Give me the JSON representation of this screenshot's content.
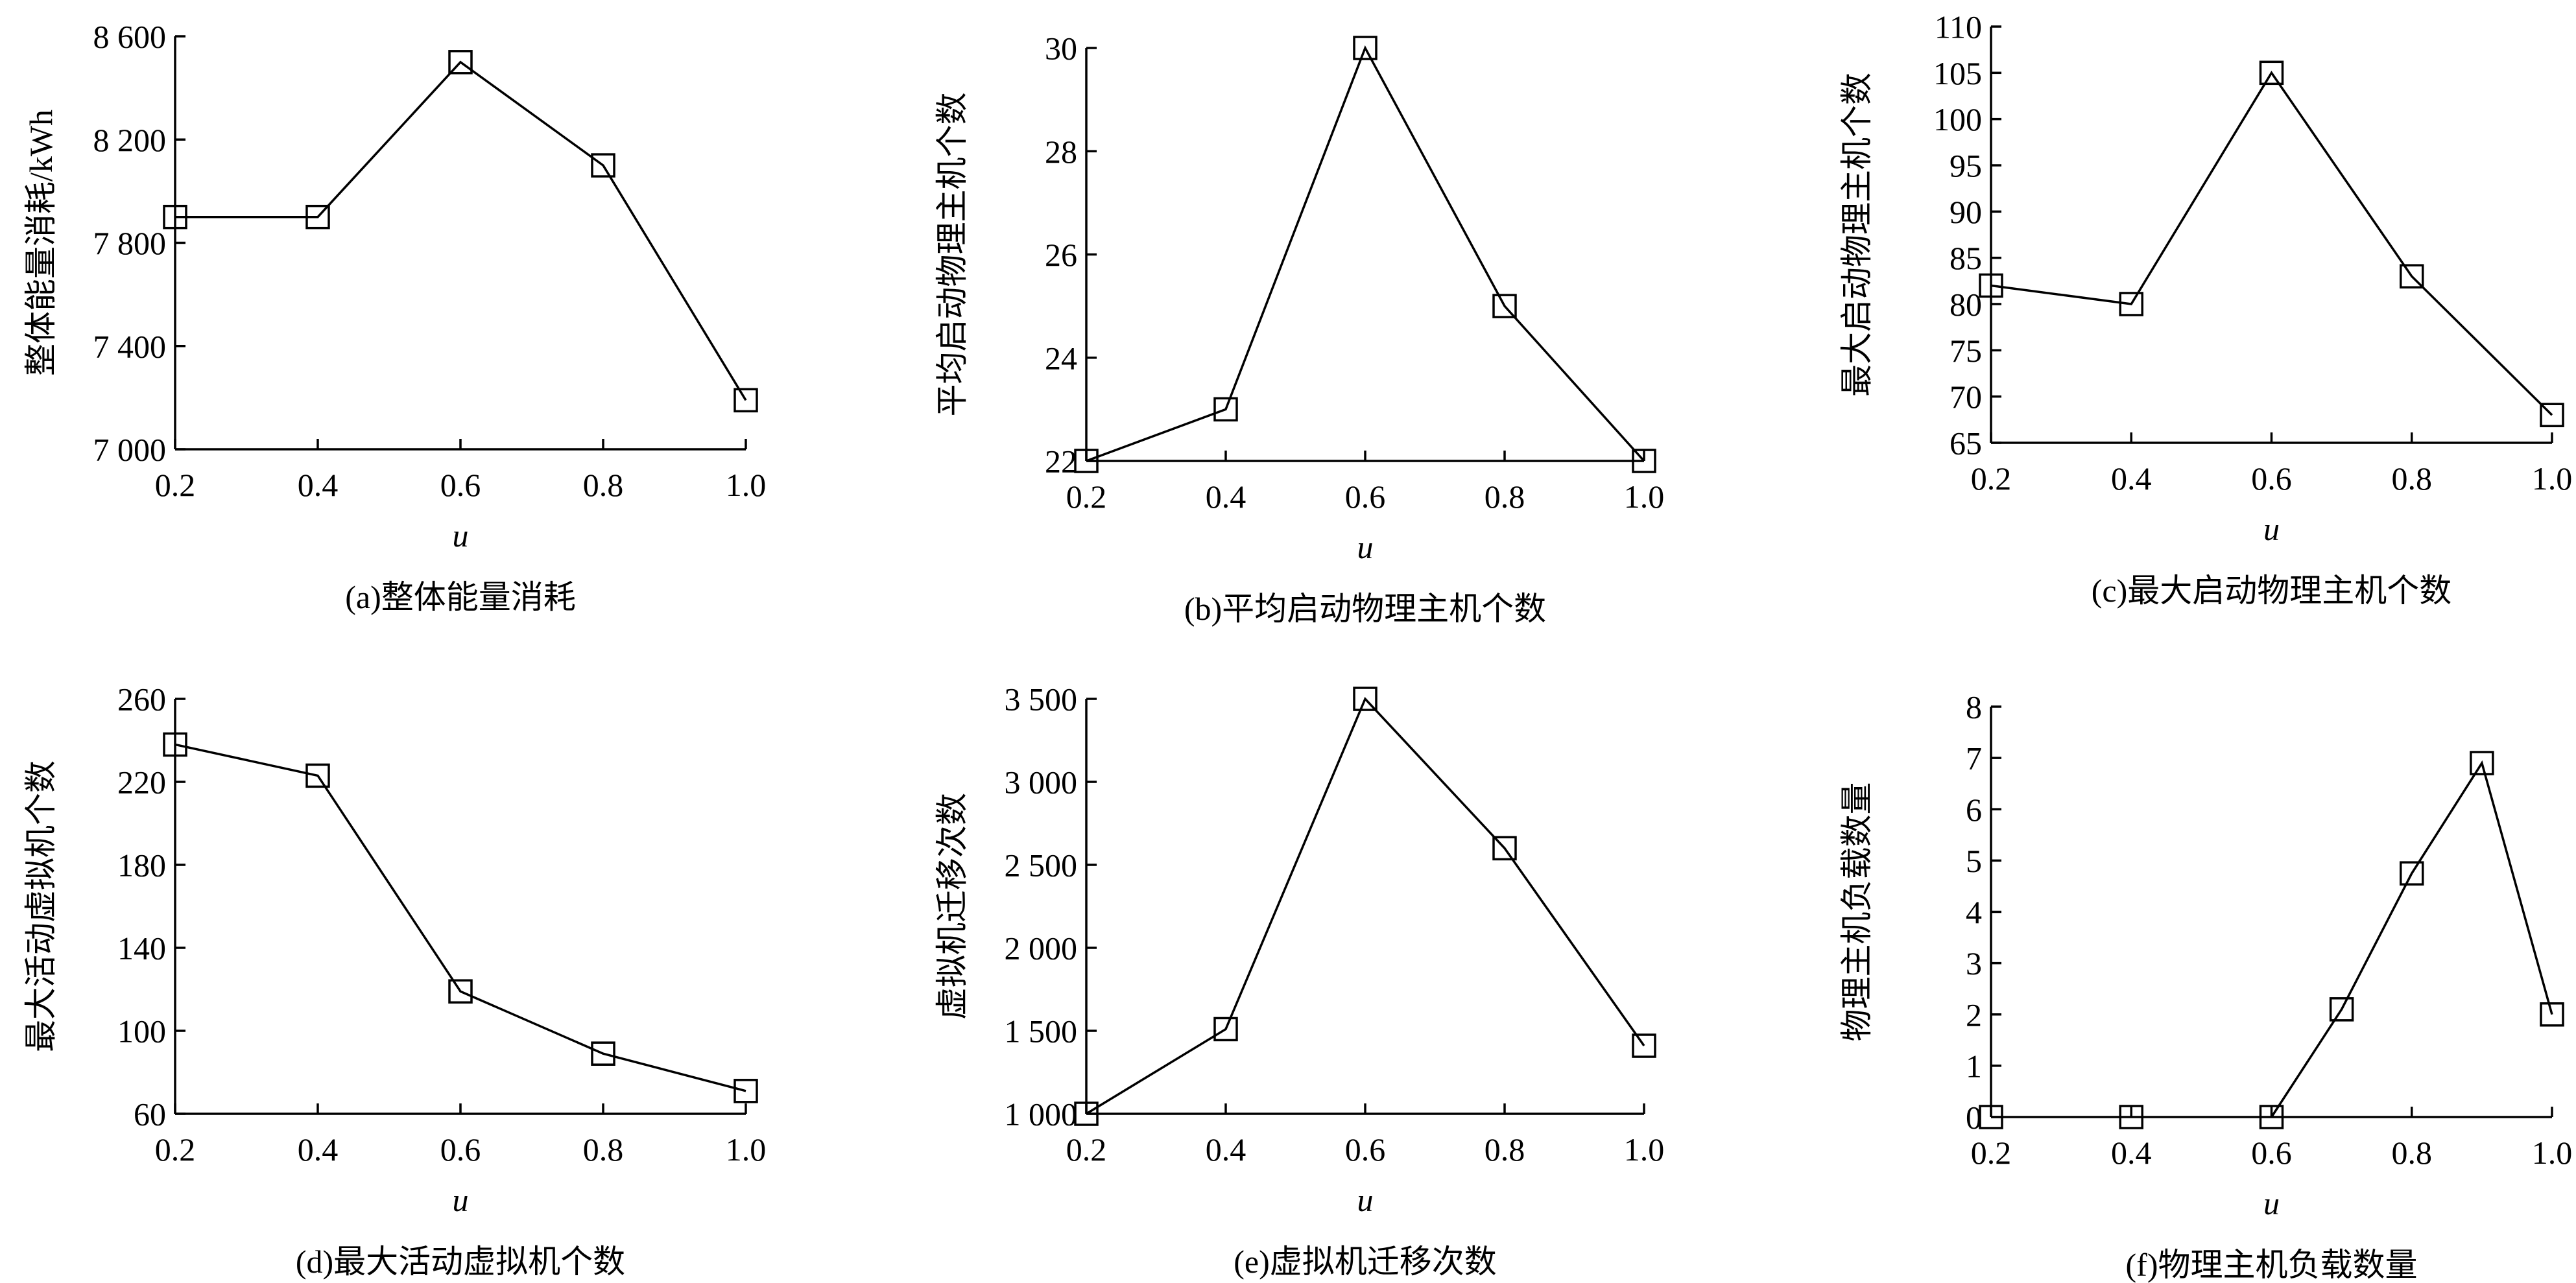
{
  "chart_data": [
    {
      "type": "line",
      "caption": "(a)整体能量消耗",
      "xlabel": "u",
      "ylabel": "整体能量消耗/kWh",
      "x": [
        0.2,
        0.4,
        0.6,
        0.8,
        1.0
      ],
      "series": [
        {
          "values": [
            7900,
            7900,
            8500,
            8100,
            7190
          ]
        }
      ],
      "xlim": [
        0.2,
        1.0
      ],
      "ylim": [
        7000,
        8600
      ],
      "xticks": [
        0.2,
        0.4,
        0.6,
        0.8,
        1.0
      ],
      "xtick_labels": [
        "0.2",
        "0.4",
        "0.6",
        "0.8",
        "1.0"
      ],
      "yticks": [
        7000,
        7400,
        7800,
        8200,
        8600
      ],
      "ytick_labels": [
        "7 000",
        "7 400",
        "7 800",
        "8 200",
        "8 600"
      ],
      "marker": "square",
      "grid": false
    },
    {
      "type": "line",
      "caption": "(b)平均启动物理主机个数",
      "xlabel": "u",
      "ylabel": "平均启动物理主机个数",
      "x": [
        0.2,
        0.4,
        0.6,
        0.8,
        1.0
      ],
      "series": [
        {
          "values": [
            22,
            23,
            30,
            25,
            22
          ]
        }
      ],
      "xlim": [
        0.2,
        1.0
      ],
      "ylim": [
        22,
        30
      ],
      "xticks": [
        0.2,
        0.4,
        0.6,
        0.8,
        1.0
      ],
      "xtick_labels": [
        "0.2",
        "0.4",
        "0.6",
        "0.8",
        "1.0"
      ],
      "yticks": [
        22,
        24,
        26,
        28,
        30
      ],
      "ytick_labels": [
        "22",
        "24",
        "26",
        "28",
        "30"
      ],
      "marker": "square",
      "grid": false
    },
    {
      "type": "line",
      "caption": "(c)最大启动物理主机个数",
      "xlabel": "u",
      "ylabel": "最大启动物理主机个数",
      "x": [
        0.2,
        0.4,
        0.6,
        0.8,
        1.0
      ],
      "series": [
        {
          "values": [
            82,
            80,
            105,
            83,
            68
          ]
        }
      ],
      "xlim": [
        0.2,
        1.0
      ],
      "ylim": [
        65,
        110
      ],
      "xticks": [
        0.2,
        0.4,
        0.6,
        0.8,
        1.0
      ],
      "xtick_labels": [
        "0.2",
        "0.4",
        "0.6",
        "0.8",
        "1.0"
      ],
      "yticks": [
        65,
        70,
        75,
        80,
        85,
        90,
        95,
        100,
        105,
        110
      ],
      "ytick_labels": [
        "65",
        "70",
        "75",
        "80",
        "85",
        "90",
        "95",
        "100",
        "105",
        "110"
      ],
      "marker": "square",
      "grid": false
    },
    {
      "type": "line",
      "caption": "(d)最大活动虚拟机个数",
      "xlabel": "u",
      "ylabel": "最大活动虚拟机个数",
      "x": [
        0.2,
        0.4,
        0.6,
        0.8,
        1.0
      ],
      "series": [
        {
          "values": [
            238,
            223,
            119,
            89,
            71
          ]
        }
      ],
      "xlim": [
        0.2,
        1.0
      ],
      "ylim": [
        60,
        260
      ],
      "xticks": [
        0.2,
        0.4,
        0.6,
        0.8,
        1.0
      ],
      "xtick_labels": [
        "0.2",
        "0.4",
        "0.6",
        "0.8",
        "1.0"
      ],
      "yticks": [
        60,
        100,
        140,
        180,
        220,
        260
      ],
      "ytick_labels": [
        "60",
        "100",
        "140",
        "180",
        "220",
        "260"
      ],
      "marker": "square",
      "grid": false
    },
    {
      "type": "line",
      "caption": "(e)虚拟机迁移次数",
      "xlabel": "u",
      "ylabel": "虚拟机迁移次数",
      "x": [
        0.2,
        0.4,
        0.6,
        0.8,
        1.0
      ],
      "series": [
        {
          "values": [
            1000,
            1510,
            3500,
            2600,
            1410
          ]
        }
      ],
      "xlim": [
        0.2,
        1.0
      ],
      "ylim": [
        1000,
        3500
      ],
      "xticks": [
        0.2,
        0.4,
        0.6,
        0.8,
        1.0
      ],
      "xtick_labels": [
        "0.2",
        "0.4",
        "0.6",
        "0.8",
        "1.0"
      ],
      "yticks": [
        1000,
        1500,
        2000,
        2500,
        3000,
        3500
      ],
      "ytick_labels": [
        "1 000",
        "1 500",
        "2 000",
        "2 500",
        "3 000",
        "3 500"
      ],
      "marker": "square",
      "grid": false
    },
    {
      "type": "line",
      "caption": "(f)物理主机负载数量",
      "xlabel": "u",
      "ylabel": "物理主机负载数量",
      "x": [
        0.2,
        0.4,
        0.6,
        0.7,
        0.8,
        0.9,
        1.0
      ],
      "series": [
        {
          "values": [
            0,
            0,
            0,
            2.1,
            4.75,
            6.9,
            2
          ]
        }
      ],
      "xlim": [
        0.2,
        1.0
      ],
      "ylim": [
        0,
        8
      ],
      "xticks": [
        0.2,
        0.4,
        0.6,
        0.8,
        1.0
      ],
      "xtick_labels": [
        "0.2",
        "0.4",
        "0.6",
        "0.8",
        "1.0"
      ],
      "yticks": [
        0,
        1,
        2,
        3,
        4,
        5,
        6,
        7,
        8
      ],
      "ytick_labels": [
        "0",
        "1",
        "2",
        "3",
        "4",
        "5",
        "6",
        "7",
        "8"
      ],
      "marker": "square",
      "grid": false,
      "connect_from_index": 2
    }
  ]
}
